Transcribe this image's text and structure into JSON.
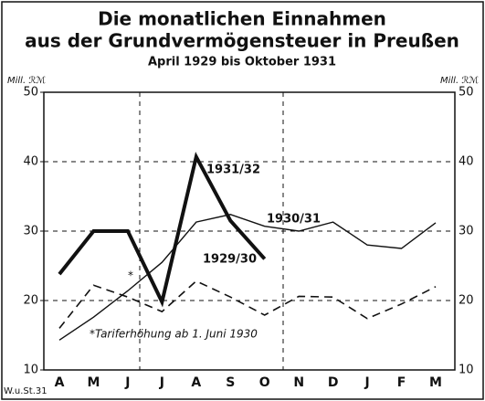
{
  "chart_data": {
    "type": "line",
    "title": "Die monatlichen Einnahmen",
    "title_line2": "aus der Grundvermögensteuer in Preußen",
    "subtitle": "April 1929 bis Oktober 1931",
    "y_label": "Mill. ℛℳ",
    "y2_label": "Mill. ℛℳ",
    "categories": [
      "A",
      "M",
      "J",
      "J",
      "A",
      "S",
      "O",
      "N",
      "D",
      "J",
      "F",
      "M"
    ],
    "series": [
      {
        "name": "1929/30",
        "color": "#111111",
        "style": "dashed",
        "values": [
          16,
          22.2,
          20.5,
          18.4,
          22.8,
          20.5,
          17.9,
          20.6,
          20.5,
          17.4,
          19.5,
          22
        ]
      },
      {
        "name": "1930/31",
        "color": "#111111",
        "style": "thin",
        "values": [
          14.3,
          17.6,
          21.4,
          25.5,
          31.3,
          32.4,
          30.7,
          30,
          31.3,
          28,
          27.5,
          31.2
        ]
      },
      {
        "name": "1931/32",
        "color": "#111111",
        "style": "thick",
        "values": [
          23.8,
          30,
          30,
          19.8,
          40.7,
          31.5,
          26,
          null,
          null,
          null,
          null,
          null
        ]
      }
    ],
    "ylim": [
      10,
      50
    ],
    "yticks": [
      10,
      20,
      30,
      40,
      50
    ],
    "grid": true,
    "annotation_star": "*",
    "annotation": "*Tariferhöhung ab 1. Juni 1930",
    "source": "W.u.St.31"
  }
}
